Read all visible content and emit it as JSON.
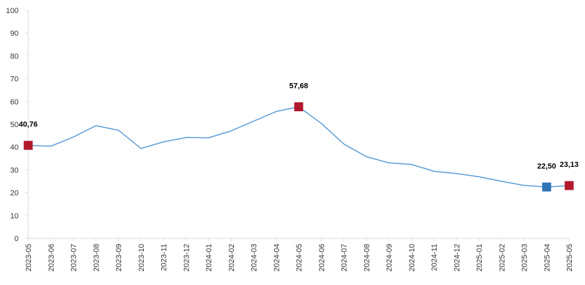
{
  "chart_data": {
    "type": "line",
    "x": [
      "2023-05",
      "2023-06",
      "2023-07",
      "2023-08",
      "2023-09",
      "2023-10",
      "2023-11",
      "2023-12",
      "2024-01",
      "2024-02",
      "2024-03",
      "2024-04",
      "2024-05",
      "2024-06",
      "2024-07",
      "2024-08",
      "2024-09",
      "2024-10",
      "2024-11",
      "2024-12",
      "2025-01",
      "2025-02",
      "2025-03",
      "2025-04",
      "2025-05"
    ],
    "series": [
      {
        "values": [
          40.76,
          40.4,
          44.4,
          49.4,
          47.4,
          39.4,
          42.3,
          44.2,
          44.1,
          47.1,
          51.4,
          55.6,
          57.68,
          50.4,
          41.4,
          35.8,
          33.1,
          32.4,
          29.4,
          28.4,
          27.0,
          25.0,
          23.2,
          22.5,
          23.13
        ],
        "color": "#5b9bd5"
      }
    ],
    "markers": [
      {
        "index": 0,
        "label": "40,76",
        "color": "#b2182b"
      },
      {
        "index": 12,
        "label": "57,68",
        "color": "#b2182b"
      },
      {
        "index": 23,
        "label": "22,50",
        "color": "#2e75b6"
      },
      {
        "index": 24,
        "label": "23,13",
        "color": "#b2182b"
      }
    ],
    "yticks": [
      "0",
      "10",
      "20",
      "30",
      "40",
      "50",
      "60",
      "70",
      "80",
      "90",
      "100"
    ],
    "ylim": [
      0,
      100
    ],
    "grid": false,
    "legend": "none",
    "axis_color": "#d9d9d9"
  }
}
